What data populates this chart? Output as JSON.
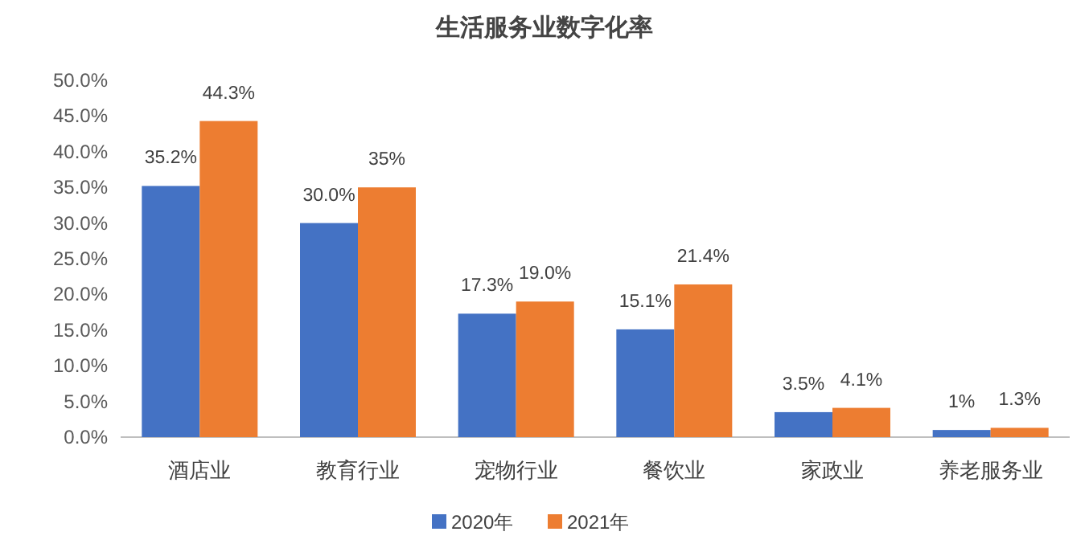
{
  "chart_data": {
    "type": "bar",
    "title": "生活服务业数字化率",
    "categories": [
      "酒店业",
      "教育行业",
      "宠物行业",
      "餐饮业",
      "家政业",
      "养老服务业"
    ],
    "series": [
      {
        "name": "2020年",
        "color": "#4472c4",
        "values": [
          35.2,
          30.0,
          17.3,
          15.1,
          3.5,
          1
        ],
        "value_labels": [
          "35.2%",
          "30.0%",
          "17.3%",
          "15.1%",
          "3.5%",
          "1%"
        ]
      },
      {
        "name": "2021年",
        "color": "#ed7d31",
        "values": [
          44.3,
          35,
          19.0,
          21.4,
          4.1,
          1.3
        ],
        "value_labels": [
          "44.3%",
          "35%",
          "19.0%",
          "21.4%",
          "4.1%",
          "1.3%"
        ]
      }
    ],
    "ylim": [
      0,
      50
    ],
    "yticks": [
      {
        "value": 0,
        "label": "0.0%"
      },
      {
        "value": 5,
        "label": "5.0%"
      },
      {
        "value": 10,
        "label": "10.0%"
      },
      {
        "value": 15,
        "label": "15.0%"
      },
      {
        "value": 20,
        "label": "20.0%"
      },
      {
        "value": 25,
        "label": "25.0%"
      },
      {
        "value": 30,
        "label": "30.0%"
      },
      {
        "value": 35,
        "label": "35.0%"
      },
      {
        "value": 40,
        "label": "40.0%"
      },
      {
        "value": 45,
        "label": "45.0%"
      },
      {
        "value": 50,
        "label": "50.0%"
      }
    ],
    "legend": "bottom",
    "grid": false
  }
}
